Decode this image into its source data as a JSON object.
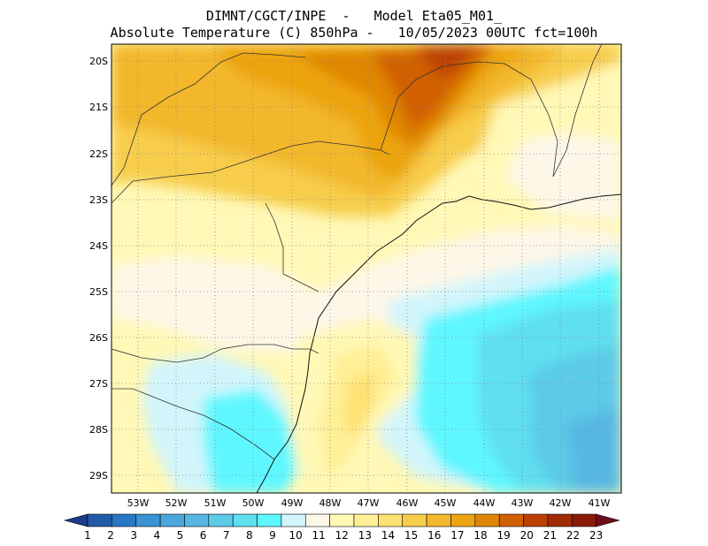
{
  "header": {
    "line1": "DIMNT/CGCT/INPE  -   Model Eta05_M01_",
    "line2": "Absolute Temperature (C) 850hPa -   10/05/2023 00UTC fct=100h"
  },
  "map": {
    "lat_labels": [
      "20S",
      "21S",
      "22S",
      "23S",
      "24S",
      "25S",
      "26S",
      "27S",
      "28S",
      "29S"
    ],
    "lon_labels": [
      "53W",
      "52W",
      "51W",
      "50W",
      "49W",
      "48W",
      "47W",
      "46W",
      "45W",
      "44W",
      "43W",
      "42W",
      "41W"
    ],
    "lat_range": [
      -29.4,
      -19.7
    ],
    "lon_range": [
      -53.8,
      -40.5
    ],
    "grid": "dotted",
    "coastline_color": "#000000",
    "border_color": "#555555"
  },
  "colorbar": {
    "labels": [
      "1",
      "2",
      "3",
      "4",
      "5",
      "6",
      "7",
      "8",
      "9",
      "10",
      "11",
      "12",
      "13",
      "14",
      "15",
      "16",
      "17",
      "18",
      "19",
      "20",
      "21",
      "22",
      "23"
    ],
    "colors": [
      "#1a3c8c",
      "#225aa8",
      "#2a78c4",
      "#3a92d2",
      "#4aa6dc",
      "#56b8e2",
      "#5ccbe8",
      "#5fdff0",
      "#5ef7ff",
      "#d2f5fb",
      "#fdf7e8",
      "#fff8b6",
      "#ffef96",
      "#fde172",
      "#f7cd4c",
      "#f2b72a",
      "#eca410",
      "#e08606",
      "#d06004",
      "#bc4002",
      "#a02a04",
      "#8a1a08",
      "#6e0e1a"
    ],
    "orientation": "horizontal",
    "end_arrows": true
  }
}
